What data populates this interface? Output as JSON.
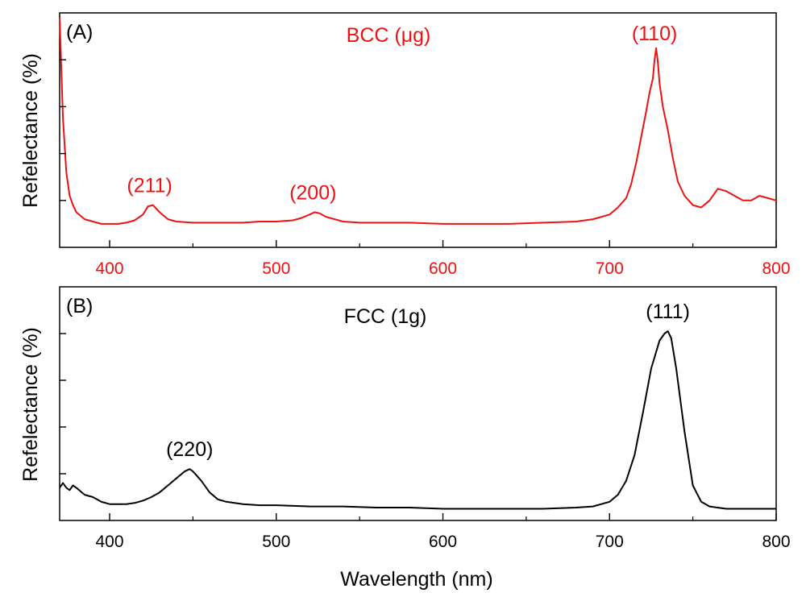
{
  "figure": {
    "xlabel": "Wavelength (nm)"
  },
  "chart_data": [
    {
      "type": "line",
      "panel_label": "(A)",
      "title": "BCC (μg)",
      "ylabel": "Refelectance (%)",
      "color": "#ee1111",
      "xlim": [
        370,
        800
      ],
      "ylim": [
        0,
        100
      ],
      "x_ticks": [
        400,
        500,
        600,
        700,
        800
      ],
      "x_tick_labels": [
        "400",
        "500",
        "600",
        "700",
        "800"
      ],
      "y_tick_labels": false,
      "series": [
        {
          "name": "BCC (μg)",
          "x": [
            370,
            372,
            374,
            376,
            378,
            380,
            385,
            390,
            395,
            400,
            405,
            410,
            415,
            420,
            423,
            426,
            430,
            435,
            440,
            450,
            460,
            470,
            480,
            490,
            500,
            510,
            515,
            520,
            523,
            526,
            530,
            540,
            550,
            560,
            580,
            600,
            620,
            640,
            660,
            680,
            690,
            700,
            705,
            710,
            713,
            716,
            719,
            722,
            724,
            726,
            727,
            728,
            729,
            730,
            732,
            735,
            738,
            741,
            745,
            750,
            755,
            760,
            765,
            770,
            775,
            780,
            785,
            790,
            795,
            800
          ],
          "y": [
            98,
            55,
            32,
            22,
            18,
            15,
            12,
            11,
            10,
            10,
            10,
            10.5,
            11.5,
            14,
            17.5,
            18,
            15,
            12,
            11,
            10.5,
            10.5,
            10.5,
            10.5,
            11,
            11,
            11.5,
            12.5,
            14,
            15,
            14.5,
            13,
            11,
            10.5,
            10.5,
            10.5,
            10,
            10,
            10,
            10.5,
            11,
            12,
            14,
            17,
            21,
            27,
            36,
            47,
            58,
            66,
            72,
            80,
            85,
            79,
            70,
            60,
            50,
            38,
            28,
            22,
            18,
            17,
            20,
            25,
            24,
            22,
            20,
            20,
            22,
            21,
            20
          ]
        }
      ],
      "annotations": [
        {
          "text": "(211)",
          "x": 424
        },
        {
          "text": "(200)",
          "x": 522
        },
        {
          "text": "(110)",
          "x": 727
        }
      ]
    },
    {
      "type": "line",
      "panel_label": "(B)",
      "title": "FCC (1g)",
      "ylabel": "Refelectance (%)",
      "color": "#000000",
      "xlim": [
        370,
        800
      ],
      "ylim": [
        0,
        100
      ],
      "x_ticks": [
        400,
        500,
        600,
        700,
        800
      ],
      "x_tick_labels": [
        "400",
        "500",
        "600",
        "700",
        "800"
      ],
      "y_tick_labels": false,
      "series": [
        {
          "name": "FCC (1g)",
          "x": [
            370,
            372,
            374,
            376,
            378,
            380,
            385,
            390,
            395,
            400,
            405,
            410,
            415,
            420,
            425,
            430,
            435,
            440,
            445,
            448,
            450,
            455,
            460,
            465,
            470,
            480,
            490,
            500,
            520,
            540,
            560,
            580,
            600,
            620,
            640,
            660,
            680,
            690,
            700,
            705,
            710,
            715,
            720,
            725,
            730,
            733,
            735,
            737,
            740,
            745,
            750,
            755,
            760,
            770,
            780,
            800
          ],
          "y": [
            14,
            16,
            14,
            13,
            15,
            14,
            11,
            10,
            8,
            7,
            7,
            7,
            7.5,
            8.5,
            10,
            12,
            15,
            18,
            21,
            22,
            21,
            17,
            12,
            9,
            8,
            7,
            6.5,
            6.5,
            6,
            6,
            5.5,
            5.5,
            5,
            5,
            5,
            5,
            5.5,
            6,
            8,
            11,
            17,
            28,
            46,
            65,
            77,
            80,
            81,
            78,
            65,
            38,
            15,
            8,
            6,
            5,
            5,
            5
          ]
        }
      ],
      "annotations": [
        {
          "text": "(220)",
          "x": 448
        },
        {
          "text": "(111)",
          "x": 735
        }
      ]
    }
  ]
}
